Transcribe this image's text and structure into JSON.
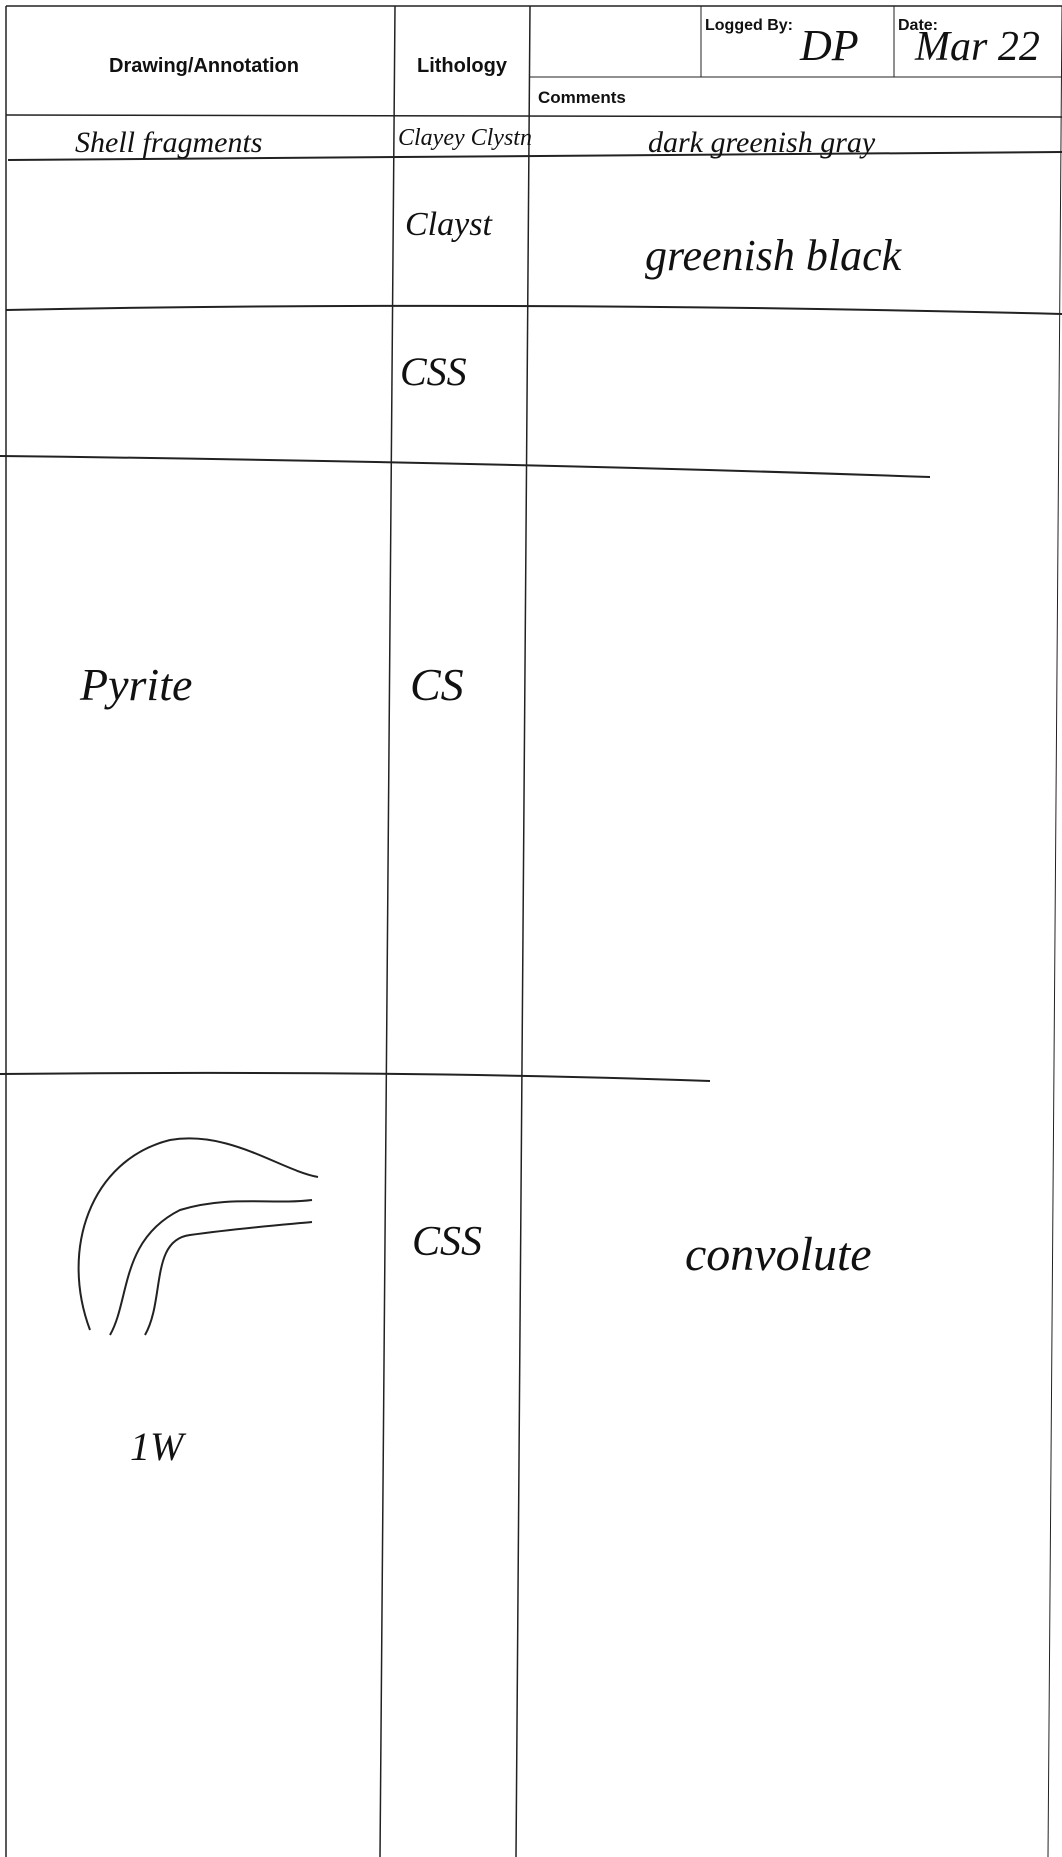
{
  "header": {
    "drawing_label": "Drawing/Annotation",
    "lithology_label": "Lithology",
    "logged_by_label": "Logged By:",
    "logged_by": "DP",
    "date_label": "Date:",
    "date": "Mar 22",
    "comments_label": "Comments"
  },
  "rows": [
    {
      "drawing": "Shell fragments",
      "lithology": "Clayey Clystn",
      "comment": "dark greenish gray"
    },
    {
      "lithology": "Clayst",
      "comment": "greenish black"
    },
    {
      "lithology": "CSS"
    },
    {
      "drawing": "Pyrite",
      "lithology": "CS"
    },
    {
      "drawing": "1W",
      "lithology": "CSS",
      "comment": "convolute"
    }
  ]
}
